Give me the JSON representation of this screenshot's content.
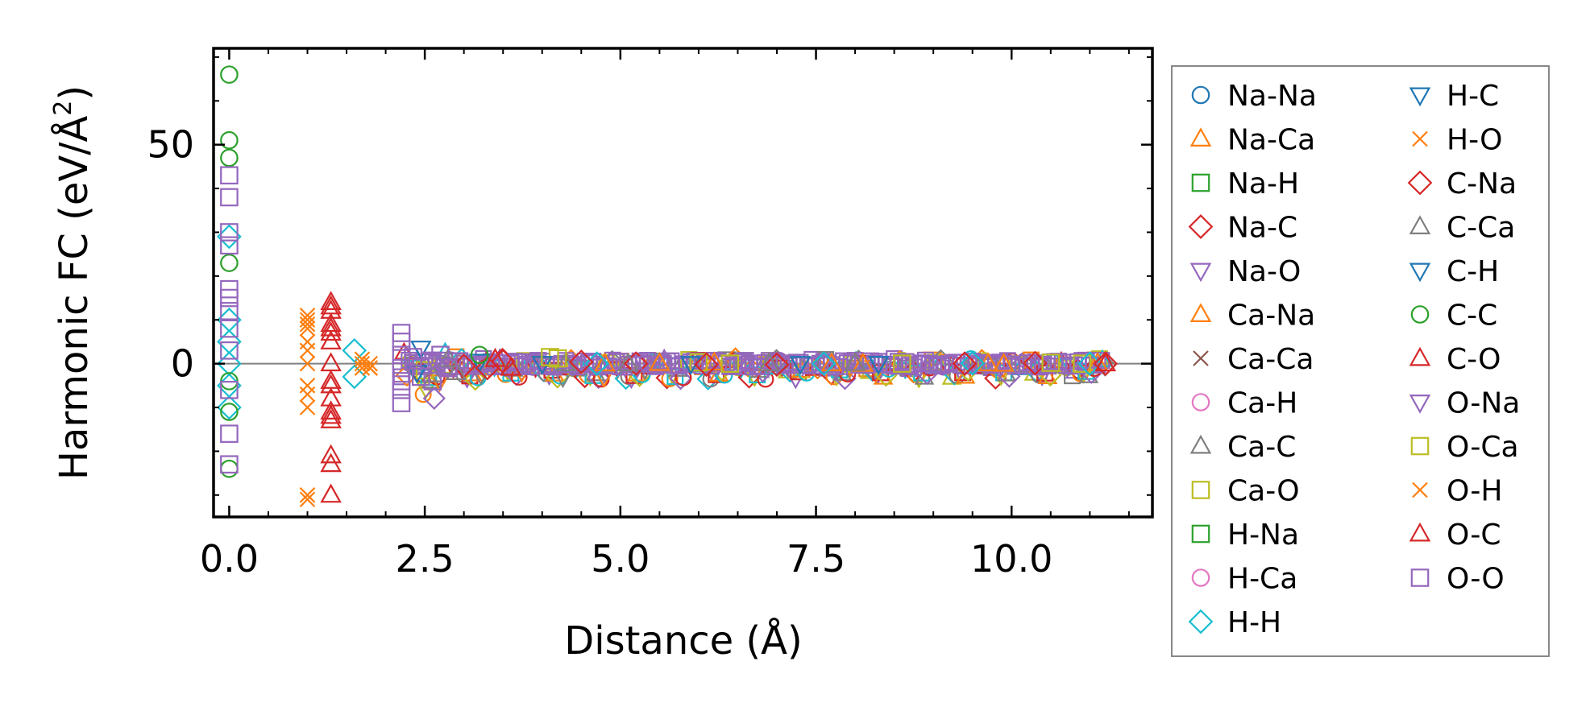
{
  "chart_data": {
    "type": "scatter",
    "title": "",
    "xlabel": "Distance (Å)",
    "ylabel_prefix": "Harmonic FC (eV/Å",
    "ylabel_sup": "2",
    "ylabel_suffix": ")",
    "xlim": [
      -0.2,
      11.8
    ],
    "ylim": [
      -35,
      72
    ],
    "x_ticks": [
      0.0,
      2.5,
      5.0,
      7.5,
      10.0
    ],
    "x_tick_labels": [
      "0.0",
      "2.5",
      "5.0",
      "7.5",
      "10.0"
    ],
    "y_major_ticks": [
      0,
      50
    ],
    "y_tick_labels": [
      "0",
      "50"
    ],
    "zero_line": 0,
    "legend_position": "outside-right",
    "series": [
      {
        "name": "Na-Na",
        "color": "#1f77b4",
        "marker": "circle",
        "x": [],
        "y": []
      },
      {
        "name": "Na-Ca",
        "color": "#ff7f0e",
        "marker": "triangle-up",
        "x": [
          4.8,
          6.2,
          8.1,
          9.7,
          11.1
        ],
        "y": [
          0,
          0.2,
          -0.1,
          0,
          0.1
        ]
      },
      {
        "name": "Na-H",
        "color": "#2ca02c",
        "marker": "square",
        "x": [],
        "y": []
      },
      {
        "name": "Na-C",
        "color": "#d62728",
        "marker": "diamond",
        "x": [
          3.0,
          3.5,
          5.2,
          7.0,
          10.3
        ],
        "y": [
          -0.5,
          0.5,
          0,
          -0.2,
          0.1
        ]
      },
      {
        "name": "Na-O",
        "color": "#9467bd",
        "marker": "triangle-down",
        "x": [
          2.7,
          3.9,
          6.6,
          8.8
        ],
        "y": [
          -0.4,
          0.3,
          0,
          0.1
        ]
      },
      {
        "name": "Ca-Na",
        "color": "#ff7f0e",
        "marker": "triangle-up",
        "x": [
          5.5,
          7.7,
          9.9
        ],
        "y": [
          0.1,
          0,
          -0.1
        ]
      },
      {
        "name": "Ca-Ca",
        "color": "#8c564b",
        "marker": "x",
        "x": [],
        "y": []
      },
      {
        "name": "Ca-H",
        "color": "#e377c2",
        "marker": "circle",
        "x": [],
        "y": []
      },
      {
        "name": "Ca-C",
        "color": "#7f7f7f",
        "marker": "triangle-up",
        "x": [
          2.6,
          2.8,
          4.3,
          6.9
        ],
        "y": [
          -2.5,
          1.0,
          0,
          0
        ]
      },
      {
        "name": "Ca-O",
        "color": "#bcbd22",
        "marker": "square",
        "x": [
          2.5,
          4.2,
          6.0,
          8.6,
          10.9
        ],
        "y": [
          -1.5,
          1.2,
          0.3,
          0,
          0
        ]
      },
      {
        "name": "H-Na",
        "color": "#2ca02c",
        "marker": "square",
        "x": [],
        "y": []
      },
      {
        "name": "H-Ca",
        "color": "#e377c2",
        "marker": "circle",
        "x": [],
        "y": []
      },
      {
        "name": "H-H",
        "color": "#17becf",
        "marker": "diamond",
        "x": [
          0,
          0,
          0,
          0,
          0,
          0,
          1.6,
          1.6,
          4.7,
          7.6,
          9.5,
          11.0
        ],
        "y": [
          29,
          10,
          5,
          0,
          -5,
          -10,
          3,
          -3,
          0,
          0,
          0.1,
          0
        ]
      },
      {
        "name": "H-C",
        "color": "#1f77b4",
        "marker": "triangle-down",
        "x": [
          2.45,
          3.2,
          5.9,
          8.3
        ],
        "y": [
          3.5,
          0.5,
          0,
          0
        ]
      },
      {
        "name": "H-O",
        "color": "#ff7f0e",
        "marker": "x",
        "x": [
          1.0,
          1.0,
          1.0,
          1.0,
          1.0,
          1.0,
          1.0,
          1.7,
          1.8,
          1.8,
          1.7
        ],
        "y": [
          10,
          8,
          5,
          0,
          -5,
          -10,
          -30,
          1,
          0,
          -1,
          -1
        ]
      },
      {
        "name": "C-Na",
        "color": "#d62728",
        "marker": "diamond",
        "x": [
          3.3,
          4.5,
          6.1,
          9.4,
          11.2
        ],
        "y": [
          -1,
          0.4,
          -0.2,
          0,
          0
        ]
      },
      {
        "name": "C-Ca",
        "color": "#7f7f7f",
        "marker": "triangle-up",
        "x": [
          2.9,
          5.1,
          8.0
        ],
        "y": [
          -2,
          0,
          0.1
        ]
      },
      {
        "name": "C-H",
        "color": "#1f77b4",
        "marker": "triangle-down",
        "x": [
          2.4,
          4.0,
          7.3
        ],
        "y": [
          -2,
          0,
          0
        ]
      },
      {
        "name": "C-C",
        "color": "#2ca02c",
        "marker": "circle",
        "x": [
          0,
          0,
          0,
          0,
          0,
          0,
          0,
          3.2
        ],
        "y": [
          66,
          51,
          47,
          23,
          -4,
          -11,
          -24,
          2
        ]
      },
      {
        "name": "C-O",
        "color": "#d62728",
        "marker": "triangle-up",
        "x": [
          1.3,
          1.3,
          1.3,
          1.3,
          1.3,
          1.3,
          1.3,
          1.3,
          1.3,
          1.3,
          1.3,
          1.3,
          1.3,
          3.4,
          3.6
        ],
        "y": [
          14,
          12,
          9,
          7,
          5,
          0,
          -5,
          -8,
          -11,
          -13,
          -21,
          -23,
          -30,
          1,
          -1
        ]
      },
      {
        "name": "O-Na",
        "color": "#9467bd",
        "marker": "triangle-down",
        "x": [
          2.6,
          5.3,
          9.0
        ],
        "y": [
          1,
          0,
          0
        ]
      },
      {
        "name": "O-Ca",
        "color": "#bcbd22",
        "marker": "square",
        "x": [
          4.1,
          6.4,
          10.5
        ],
        "y": [
          1.5,
          0,
          0.2
        ]
      },
      {
        "name": "O-H",
        "color": "#ff7f0e",
        "marker": "x",
        "x": [
          1.0,
          1.0,
          1.0,
          1.0,
          1.0,
          1.7,
          1.8
        ],
        "y": [
          11,
          9,
          3,
          -7,
          -31,
          0,
          -1
        ]
      },
      {
        "name": "O-C",
        "color": "#d62728",
        "marker": "triangle-up",
        "x": [
          1.3,
          1.3,
          1.3,
          1.3,
          11.2
        ],
        "y": [
          13,
          8,
          -4,
          -12,
          0
        ]
      },
      {
        "name": "O-O",
        "color": "#9467bd",
        "marker": "square",
        "x": [
          0,
          0,
          0,
          0,
          0,
          0,
          0,
          0,
          0,
          0,
          0,
          0,
          2.2,
          2.2,
          2.2,
          2.2,
          2.2,
          2.2,
          2.2,
          2.35,
          2.45,
          2.6,
          2.7,
          2.8
        ],
        "y": [
          43,
          38,
          30,
          27,
          17,
          15,
          12,
          8,
          3,
          -6,
          -16,
          -23,
          7,
          5,
          2,
          -1,
          -4,
          -6,
          -9,
          1.5,
          -3,
          -4,
          2,
          -1
        ]
      }
    ],
    "dense_band": {
      "x_start": 2.2,
      "x_end": 11.2,
      "y_spread": 1.2,
      "colors": [
        "#9467bd",
        "#d62728",
        "#ff7f0e",
        "#bcbd22",
        "#17becf",
        "#7f7f7f"
      ]
    }
  }
}
